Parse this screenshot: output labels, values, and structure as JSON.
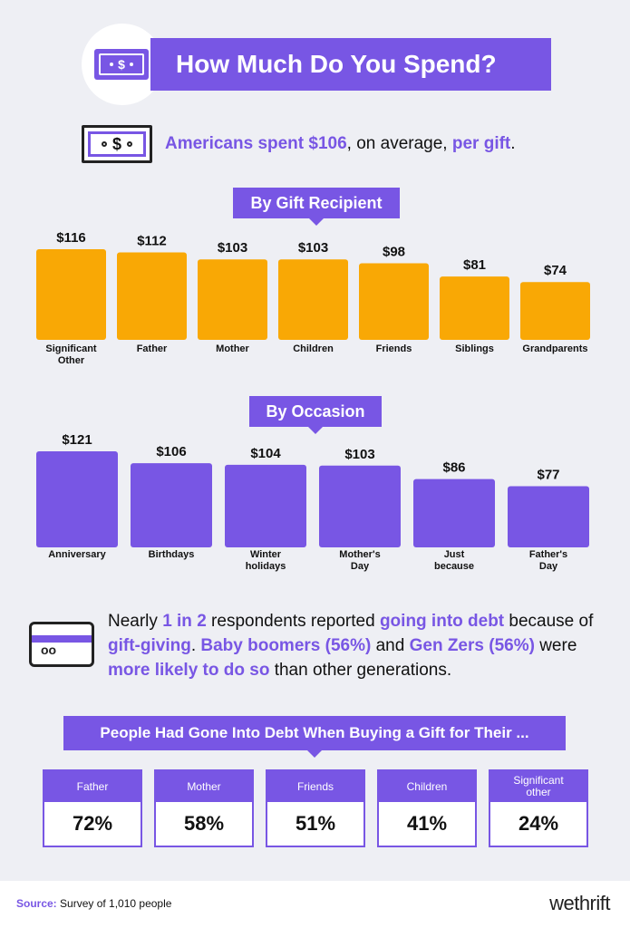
{
  "header": {
    "title": "How Much Do You Spend?",
    "bill_symbol": "$"
  },
  "average": {
    "bold1": "Americans spent $106",
    "mid": ", on average, ",
    "bold2": "per gift",
    "end": ".",
    "bill_symbol": "$"
  },
  "recipient_pill": "By Gift Recipient",
  "occasion_pill": "By Occasion",
  "chart_data": [
    {
      "type": "bar",
      "title": "By Gift Recipient",
      "categories": [
        "Significant Other",
        "Father",
        "Mother",
        "Children",
        "Friends",
        "Siblings",
        "Grandparents"
      ],
      "values": [
        116,
        112,
        103,
        103,
        98,
        81,
        74
      ],
      "value_labels": [
        "$116",
        "$112",
        "$103",
        "$103",
        "$98",
        "$81",
        "$74"
      ],
      "color": "#f9a805"
    },
    {
      "type": "bar",
      "title": "By Occasion",
      "categories": [
        "Anniversary",
        "Birthdays",
        "Winter holidays",
        "Mother's Day",
        "Just because",
        "Father's Day"
      ],
      "values": [
        121,
        106,
        104,
        103,
        86,
        77
      ],
      "value_labels": [
        "$121",
        "$106",
        "$104",
        "$103",
        "$86",
        "$77"
      ],
      "color": "#7856e4"
    }
  ],
  "debt": {
    "t1": "Nearly ",
    "b1": "1 in 2",
    "t2": " respondents reported ",
    "b2": "going into debt",
    "t3": " because of ",
    "b3": "gift-giving",
    "t4": ". ",
    "b4": "Baby boomers (56%)",
    "t5": " and ",
    "b5": "Gen Zers (56%)",
    "t6": " were ",
    "b6": "more likely to do so",
    "t7": " than other generations.",
    "card_chip": "oo"
  },
  "debt_title": "People Had Gone Into Debt When Buying a Gift for Their ...",
  "debt_boxes": [
    {
      "label": "Father",
      "value": "72%"
    },
    {
      "label": "Mother",
      "value": "58%"
    },
    {
      "label": "Friends",
      "value": "51%"
    },
    {
      "label": "Children",
      "value": "41%"
    },
    {
      "label": "Significant other",
      "value": "24%"
    }
  ],
  "footer": {
    "source_label": "Source:",
    "source_text": " Survey of 1,010 people",
    "logo": "wethrift"
  },
  "colors": {
    "accent": "#7856e4",
    "bar_orange": "#f9a805",
    "background": "#eeeff4"
  }
}
